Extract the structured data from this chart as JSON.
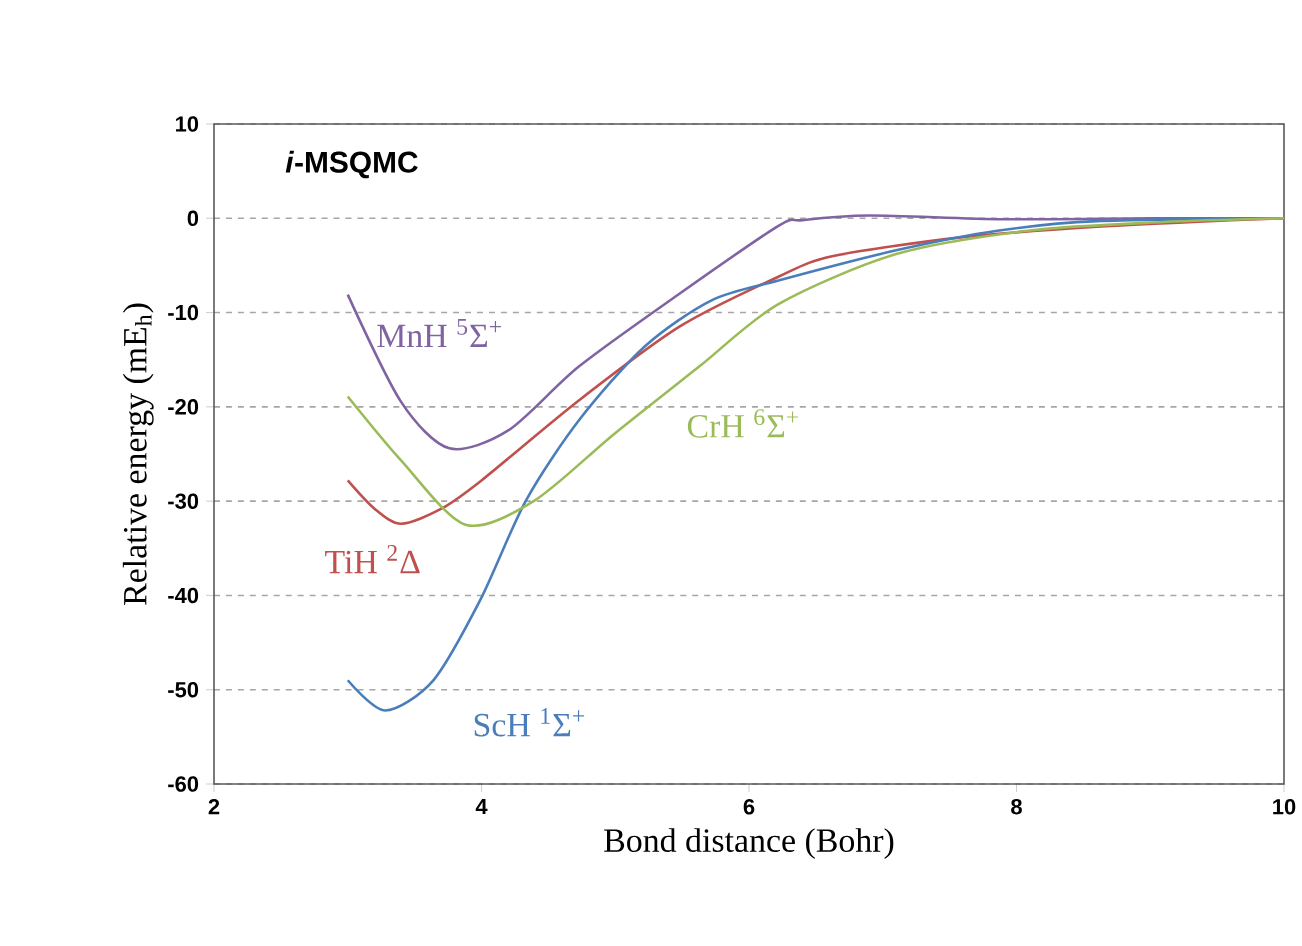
{
  "chart_data": {
    "type": "line",
    "title": "*i*-MSQMC",
    "xlabel": "Bond distance (Bohr)",
    "ylabel": "Relative energy (mE$_{h}$)",
    "xlim": [
      2,
      10
    ],
    "xticks": [
      2,
      4,
      6,
      8,
      10
    ],
    "ylim": [
      -60,
      10
    ],
    "yticks": [
      -60,
      -50,
      -40,
      -30,
      -20,
      -10,
      0,
      10
    ],
    "grid": "y",
    "legend": false,
    "marker": "none",
    "line_style": "solid",
    "series": [
      {
        "name": "MnH $^{5}$Σ$^{+}$",
        "color": "#8064a2",
        "x": [
          3.0,
          3.4,
          3.76,
          4.2,
          4.73,
          5.48,
          6.22,
          6.4,
          6.9,
          7.9,
          9.0,
          10
        ],
        "values": [
          -8.1,
          -19.5,
          -24.4,
          -22.5,
          -15.7,
          -8,
          -0.8,
          -0.2,
          0.3,
          -0.1,
          0,
          0
        ]
      },
      {
        "name": "TiH $^{2}$Δ",
        "color": "#c0504d",
        "x": [
          3.0,
          3.2,
          3.4,
          3.7,
          4.0,
          4.73,
          5.48,
          6.22,
          6.63,
          7.6,
          8.6,
          9.6,
          10
        ],
        "values": [
          -27.8,
          -30.8,
          -32.4,
          -30.8,
          -27.8,
          -19.3,
          -11.5,
          -6.2,
          -4.0,
          -2.0,
          -0.9,
          -0.2,
          0
        ]
      },
      {
        "name": "ScH $^{1}$Σ$^{+}$",
        "color": "#4a7ebb",
        "x": [
          3.0,
          3.28,
          3.64,
          3.99,
          4.33,
          4.73,
          5.22,
          5.72,
          6.22,
          7.1,
          7.87,
          8.6,
          10
        ],
        "values": [
          -49,
          -52.2,
          -49,
          -40.5,
          -30,
          -21.4,
          -13.6,
          -8.7,
          -6.6,
          -3.4,
          -1.3,
          -0.3,
          0
        ]
      },
      {
        "name": "CrH $^{6}$Σ$^{+}$",
        "color": "#9bbb59",
        "x": [
          3.0,
          3.4,
          3.88,
          4.39,
          4.99,
          5.63,
          6.22,
          7.1,
          8.1,
          9.1,
          10
        ],
        "values": [
          -18.9,
          -25.7,
          -32.5,
          -30,
          -22.9,
          -15.7,
          -9.1,
          -3.8,
          -1.3,
          -0.4,
          0
        ]
      }
    ]
  }
}
